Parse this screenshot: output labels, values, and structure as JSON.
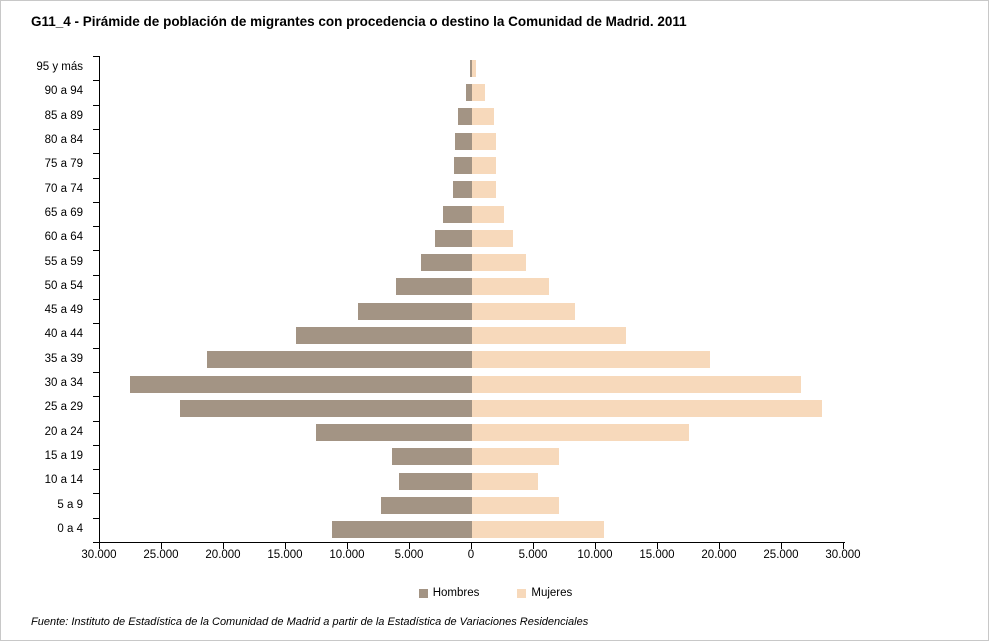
{
  "title": "G11_4 - Pirámide de población de migrantes con procedencia o destino la Comunidad de Madrid. 2011",
  "source_note": "Fuente: Instituto de Estadística de la Comunidad de Madrid a partir de la Estadística de Variaciones Residenciales",
  "colors": {
    "hombres": "#A39484",
    "mujeres": "#F7D9BB",
    "axis": "#000000",
    "background": "#FFFFFF"
  },
  "legend": [
    {
      "label": "Hombres",
      "color": "#A39484"
    },
    {
      "label": "Mujeres",
      "color": "#F7D9BB"
    }
  ],
  "chart_data": {
    "type": "bar",
    "subtype": "population-pyramid",
    "orientation": "horizontal",
    "title": "G11_4 - Pirámide de población de migrantes con procedencia o destino la Comunidad de Madrid. 2011",
    "categories_top_to_bottom": [
      "95 y más",
      "90 a 94",
      "85 a 89",
      "80 a 84",
      "75 a 79",
      "70 a 74",
      "65 a 69",
      "60 a 64",
      "55 a 59",
      "50 a 54",
      "45 a 49",
      "40 a 44",
      "35 a 39",
      "30 a 34",
      "25 a 29",
      "20 a 24",
      "15 a 19",
      "10 a 14",
      "5 a 9",
      "0 a 4"
    ],
    "series": [
      {
        "name": "Hombres",
        "side": "left",
        "color": "#A39484",
        "values": [
          200,
          460,
          1100,
          1350,
          1480,
          1560,
          2370,
          2980,
          4090,
          6150,
          9220,
          14200,
          21370,
          27560,
          23530,
          12620,
          6450,
          5860,
          7310,
          11320
        ]
      },
      {
        "name": "Mujeres",
        "side": "right",
        "color": "#F7D9BB",
        "values": [
          350,
          1080,
          1780,
          1950,
          1960,
          1910,
          2580,
          3310,
          4350,
          6190,
          8280,
          12440,
          19170,
          26530,
          28220,
          17480,
          6990,
          5320,
          6990,
          10620
        ]
      }
    ],
    "x_axis": {
      "min": -30000,
      "max": 30000,
      "tick_interval": 5000,
      "tick_labels": [
        "30.000",
        "25.000",
        "20.000",
        "15.000",
        "10.000",
        "5.000",
        "0",
        "5.000",
        "10.000",
        "15.000",
        "20.000",
        "25.000",
        "30.000"
      ]
    },
    "grid": false,
    "legend_position": "bottom",
    "ylabel": "",
    "xlabel": ""
  }
}
